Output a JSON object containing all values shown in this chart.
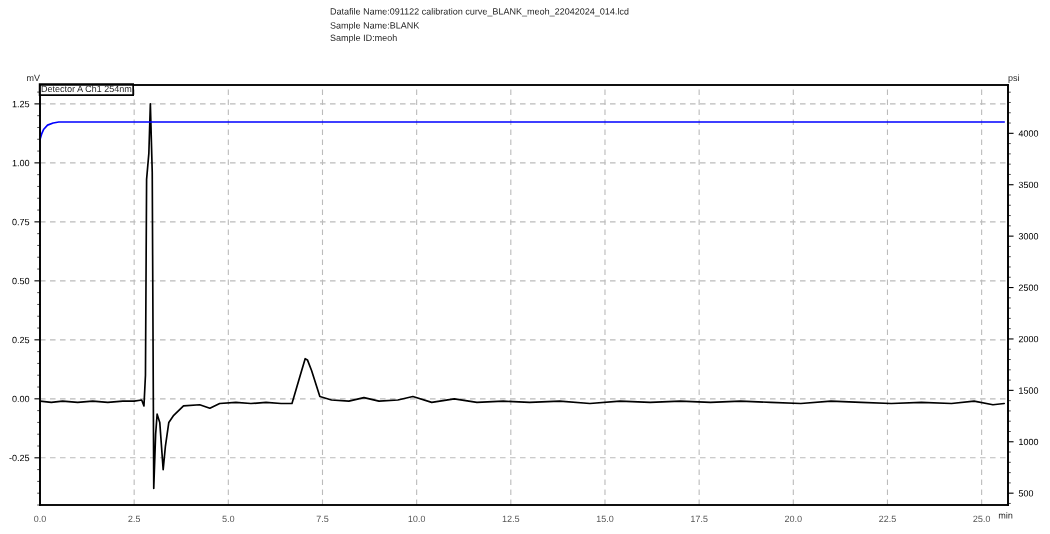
{
  "chart_data": {
    "type": "line",
    "title": "Datafile Name:091122 calibration curve_BLANK_meoh_22042024_014.lcd",
    "subtitle": "Sample Name:BLANK\nSample ID:meoh",
    "xlabel": "min",
    "ylabel": "mV",
    "y2label": "psi",
    "annotations": [
      "Detector A Ch1 254nm"
    ],
    "series": [
      {
        "color": "#000000",
        "x": [
          0.0,
          0.3,
          0.6,
          1.0,
          1.4,
          1.8,
          2.2,
          2.5,
          2.7,
          2.76,
          2.8,
          2.83,
          2.89,
          2.93,
          2.98,
          3.02,
          3.07,
          3.11,
          3.18,
          3.27,
          3.33,
          3.42,
          3.55,
          3.81,
          4.24,
          4.51,
          4.77,
          5.2,
          5.6,
          6.0,
          6.4,
          6.69,
          6.91,
          7.04,
          7.1,
          7.21,
          7.43,
          7.74,
          8.2,
          8.6,
          9.0,
          9.5,
          9.9,
          10.4,
          11.0,
          11.6,
          12.3,
          13.0,
          13.8,
          14.6,
          15.4,
          16.2,
          17.0,
          17.8,
          18.6,
          19.4,
          20.2,
          21.0,
          21.8,
          22.6,
          23.4,
          24.2,
          24.8,
          25.3,
          25.6
        ],
        "values": [
          -0.01,
          -0.015,
          -0.01,
          -0.015,
          -0.01,
          -0.015,
          -0.01,
          -0.01,
          -0.005,
          -0.03,
          0.1,
          0.93,
          1.04,
          1.25,
          0.96,
          -0.38,
          -0.15,
          -0.065,
          -0.1,
          -0.3,
          -0.2,
          -0.1,
          -0.07,
          -0.03,
          -0.025,
          -0.04,
          -0.02,
          -0.015,
          -0.02,
          -0.015,
          -0.02,
          -0.02,
          0.1,
          0.17,
          0.165,
          0.12,
          0.01,
          -0.005,
          -0.01,
          0.005,
          -0.01,
          -0.005,
          0.01,
          -0.015,
          0.0,
          -0.015,
          -0.01,
          -0.015,
          -0.01,
          -0.02,
          -0.01,
          -0.015,
          -0.01,
          -0.015,
          -0.01,
          -0.015,
          -0.02,
          -0.01,
          -0.015,
          -0.02,
          -0.015,
          -0.02,
          -0.01,
          -0.025,
          -0.02
        ]
      },
      {
        "color": "#0000ff",
        "axis": "y2",
        "x": [
          0.0,
          0.05,
          0.1,
          0.2,
          0.35,
          0.5,
          1.0,
          5.0,
          10.0,
          15.0,
          20.0,
          25.0,
          25.6
        ],
        "values": [
          3940,
          4000,
          4040,
          4080,
          4100,
          4110,
          4110,
          4110,
          4110,
          4110,
          4110,
          4110,
          4110
        ]
      }
    ],
    "xlim": [
      0,
      25.7
    ],
    "xticks": [
      {
        "value": 0,
        "label": "0.0"
      },
      {
        "value": 2.5,
        "label": "2.5"
      },
      {
        "value": 5,
        "label": "5.0"
      },
      {
        "value": 7.5,
        "label": "7.5"
      },
      {
        "value": 10,
        "label": "10.0"
      },
      {
        "value": 12.5,
        "label": "12.5"
      },
      {
        "value": 15,
        "label": "15.0"
      },
      {
        "value": 17.5,
        "label": "17.5"
      },
      {
        "value": 20,
        "label": "20.0"
      },
      {
        "value": 22.5,
        "label": "22.5"
      },
      {
        "value": 25,
        "label": "25.0"
      }
    ],
    "ylim": [
      -0.45,
      1.33
    ],
    "yticks": [
      {
        "value": -0.25,
        "label": "-0.25"
      },
      {
        "value": 0,
        "label": "0.00"
      },
      {
        "value": 0.25,
        "label": "0.25"
      },
      {
        "value": 0.5,
        "label": "0.50"
      },
      {
        "value": 0.75,
        "label": "0.75"
      },
      {
        "value": 1.0,
        "label": "1.00"
      },
      {
        "value": 1.25,
        "label": "1.25"
      }
    ],
    "y2lim": [
      385,
      4470
    ],
    "y2ticks": [
      500,
      1000,
      1500,
      2000,
      2500,
      3000,
      3500,
      4000
    ],
    "grid": true
  }
}
